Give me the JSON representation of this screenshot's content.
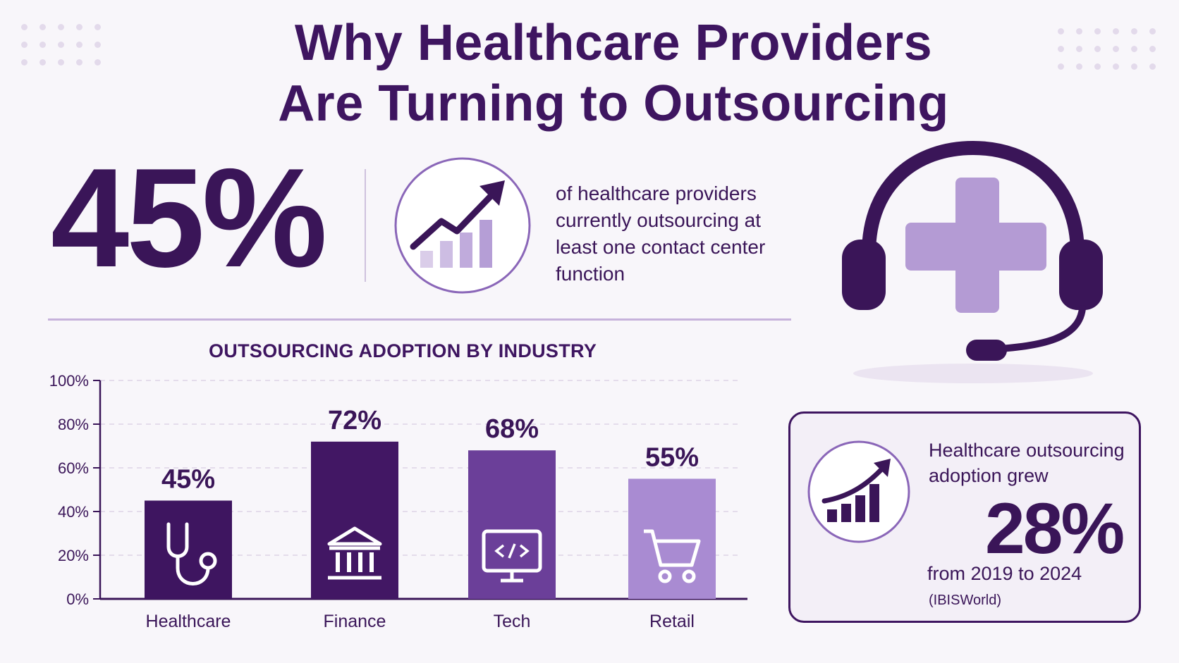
{
  "title_line1": "Why Healthcare Providers",
  "title_line2": "Are Turning to Outsourcing",
  "headline_stat": {
    "value": "45%",
    "description": "of healthcare providers currently outsourcing at least one contact center function"
  },
  "icons": {
    "stat": "trend-up-chart-icon",
    "hero": "headset-medical-cross-icon",
    "growth": "trend-up-chart-icon",
    "bars": [
      "stethoscope-icon",
      "bank-icon",
      "monitor-code-icon",
      "shopping-cart-icon"
    ]
  },
  "colors": {
    "dark": "#3e1560",
    "bar_colors": [
      "#3e1560",
      "#421764",
      "#6b3f99",
      "#a98bd2"
    ],
    "light": "#b9a2d6"
  },
  "chart_data": {
    "type": "bar",
    "title": "OUTSOURCING ADOPTION BY INDUSTRY",
    "categories": [
      "Healthcare",
      "Finance",
      "Tech",
      "Retail"
    ],
    "values": [
      45,
      72,
      68,
      55
    ],
    "value_labels": [
      "45%",
      "72%",
      "68%",
      "55%"
    ],
    "ylim": [
      0,
      100
    ],
    "yticks": [
      0,
      20,
      40,
      60,
      80,
      100
    ],
    "ytick_labels": [
      "0%",
      "20%",
      "40%",
      "60%",
      "80%",
      "100%"
    ],
    "xlabel": "",
    "ylabel": "",
    "grid": true
  },
  "growth_card": {
    "lead": "Healthcare outsourcing adoption grew",
    "value": "28%",
    "period": "from 2019 to 2024",
    "source": "(IBISWorld)"
  }
}
